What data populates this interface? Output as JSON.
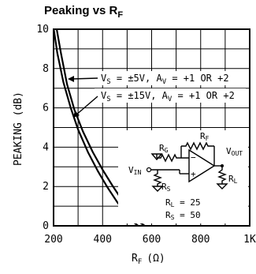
{
  "chart_data": {
    "type": "line",
    "title": "Peaking vs R",
    "title_sub": "F",
    "xlabel": "R",
    "xlabel_sub": "F",
    "xlabel_unit": "(Ω)",
    "ylabel": "PEAKING (dB)",
    "xlim": [
      200,
      1000
    ],
    "ylim": [
      0,
      10
    ],
    "x_ticks": [
      {
        "value": 200,
        "label": "200"
      },
      {
        "value": 400,
        "label": "400"
      },
      {
        "value": 600,
        "label": "600"
      },
      {
        "value": 800,
        "label": "800"
      },
      {
        "value": 1000,
        "label": "1K"
      }
    ],
    "y_ticks": [
      {
        "value": 0,
        "label": "0"
      },
      {
        "value": 2,
        "label": "2"
      },
      {
        "value": 4,
        "label": "4"
      },
      {
        "value": 6,
        "label": "6"
      },
      {
        "value": 8,
        "label": "8"
      },
      {
        "value": 10,
        "label": "10"
      }
    ],
    "grid": true,
    "series": [
      {
        "name": "V_S = ±5V, A_V = +1 OR +2",
        "x": [
          201,
          215,
          240,
          270,
          300,
          340,
          380,
          420,
          460,
          500,
          530,
          545
        ],
        "y": [
          10,
          8.8,
          7.3,
          6.0,
          4.9,
          3.75,
          2.8,
          1.95,
          1.2,
          0.55,
          0.15,
          0
        ]
      },
      {
        "name": "V_S = ±15V, A_V = +1 OR +2",
        "x": [
          213,
          230,
          255,
          285,
          320,
          360,
          400,
          440,
          480,
          520,
          555,
          572
        ],
        "y": [
          10,
          8.8,
          7.2,
          5.9,
          4.8,
          3.75,
          2.85,
          2.05,
          1.3,
          0.65,
          0.15,
          0
        ]
      }
    ],
    "annotations": [
      {
        "id": "ann1",
        "parts": [
          "V",
          "S",
          " = ±5V, A",
          "V",
          " = +1 OR +2"
        ]
      },
      {
        "id": "ann2",
        "parts": [
          "V",
          "S",
          " = ±15V, A",
          "V",
          " = +1 OR +2"
        ]
      }
    ],
    "circuit": {
      "rg": [
        "R",
        "G"
      ],
      "rf": [
        "R",
        "F"
      ],
      "rs": [
        "R",
        "S"
      ],
      "rl": [
        "R",
        "L"
      ],
      "vin": [
        "V",
        "IN"
      ],
      "vout": [
        "V",
        "OUT"
      ],
      "minus": "−",
      "plus": "+",
      "rl_value": [
        "R",
        "L",
        " = 25"
      ],
      "rs_value": [
        "R",
        "S",
        " = 50"
      ]
    }
  }
}
